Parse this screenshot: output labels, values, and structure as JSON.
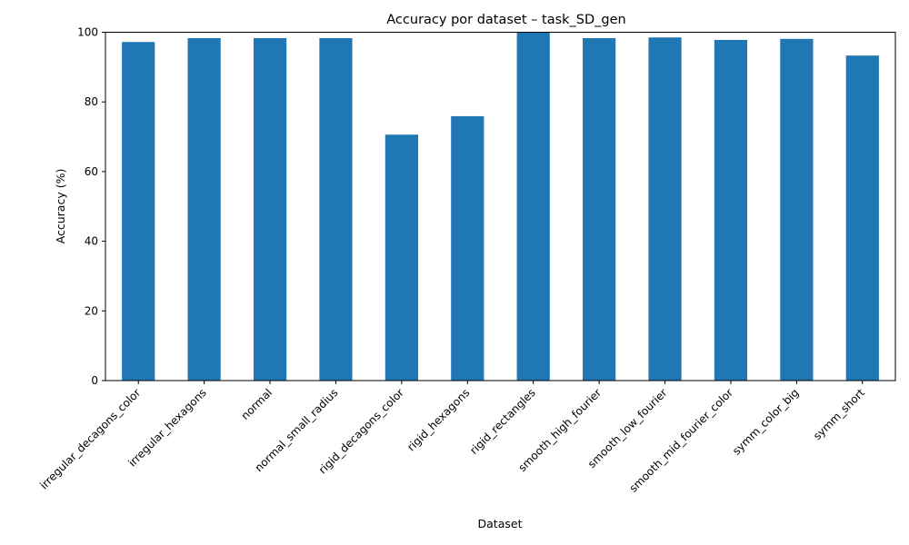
{
  "chart_data": {
    "type": "bar",
    "title": "Accuracy por dataset – task_SD_gen",
    "xlabel": "Dataset",
    "ylabel": "Accuracy (%)",
    "ylim": [
      0,
      100
    ],
    "yticks": [
      0,
      20,
      40,
      60,
      80,
      100
    ],
    "categories": [
      "irregular_decagons_color",
      "irregular_hexagons",
      "normal",
      "normal_small_radius",
      "rigid_decagons_color",
      "rigid_hexagons",
      "rigid_rectangles",
      "smooth_high_fourier",
      "smooth_low_fourier",
      "smooth_mid_fourier_color",
      "symm_color_big",
      "symm_short"
    ],
    "values": [
      97.2,
      98.3,
      98.3,
      98.3,
      70.6,
      75.9,
      99.9,
      98.3,
      98.5,
      97.8,
      98.1,
      93.3
    ],
    "bar_color": "#1f77b4",
    "grid": false,
    "legend": "none"
  }
}
